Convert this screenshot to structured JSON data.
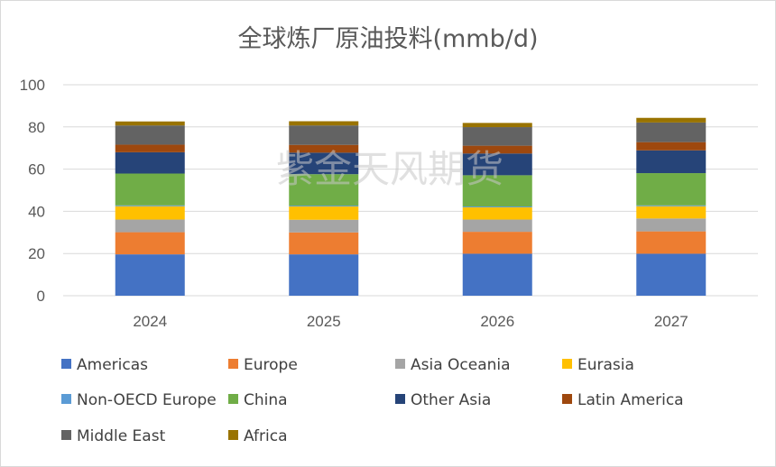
{
  "chart_data": {
    "type": "bar",
    "stacked": true,
    "title": "全球炼厂原油投料(mmb/d)",
    "watermark": "紫金天风期货",
    "categories": [
      "2024",
      "2025",
      "2026",
      "2027"
    ],
    "ylim": [
      0,
      100
    ],
    "yticks": [
      0,
      20,
      40,
      60,
      80,
      100
    ],
    "grid": true,
    "legend_position": "bottom",
    "series": [
      {
        "name": "Americas",
        "color": "#4472c4",
        "values": [
          19.6,
          19.6,
          19.9,
          19.9
        ]
      },
      {
        "name": "Europe",
        "color": "#ed7d31",
        "values": [
          10.5,
          10.4,
          10.4,
          10.6
        ]
      },
      {
        "name": "Asia Oceania",
        "color": "#a5a5a5",
        "values": [
          6.0,
          6.0,
          5.8,
          6.1
        ]
      },
      {
        "name": "Eurasia",
        "color": "#ffc000",
        "values": [
          6.3,
          6.3,
          5.8,
          5.8
        ]
      },
      {
        "name": "Non-OECD Europe",
        "color": "#5b9bd5",
        "values": [
          0.4,
          0.4,
          0.4,
          0.4
        ]
      },
      {
        "name": "China",
        "color": "#70ad47",
        "values": [
          15.1,
          14.9,
          14.8,
          15.3
        ]
      },
      {
        "name": "Other Asia",
        "color": "#264478",
        "values": [
          10.1,
          10.2,
          10.3,
          10.8
        ]
      },
      {
        "name": "Latin America",
        "color": "#9e480e",
        "values": [
          3.6,
          3.7,
          3.7,
          3.9
        ]
      },
      {
        "name": "Middle East",
        "color": "#636363",
        "values": [
          9.1,
          9.2,
          8.8,
          9.3
        ]
      },
      {
        "name": "Africa",
        "color": "#997300",
        "values": [
          1.9,
          2.0,
          2.0,
          2.2
        ]
      }
    ]
  }
}
